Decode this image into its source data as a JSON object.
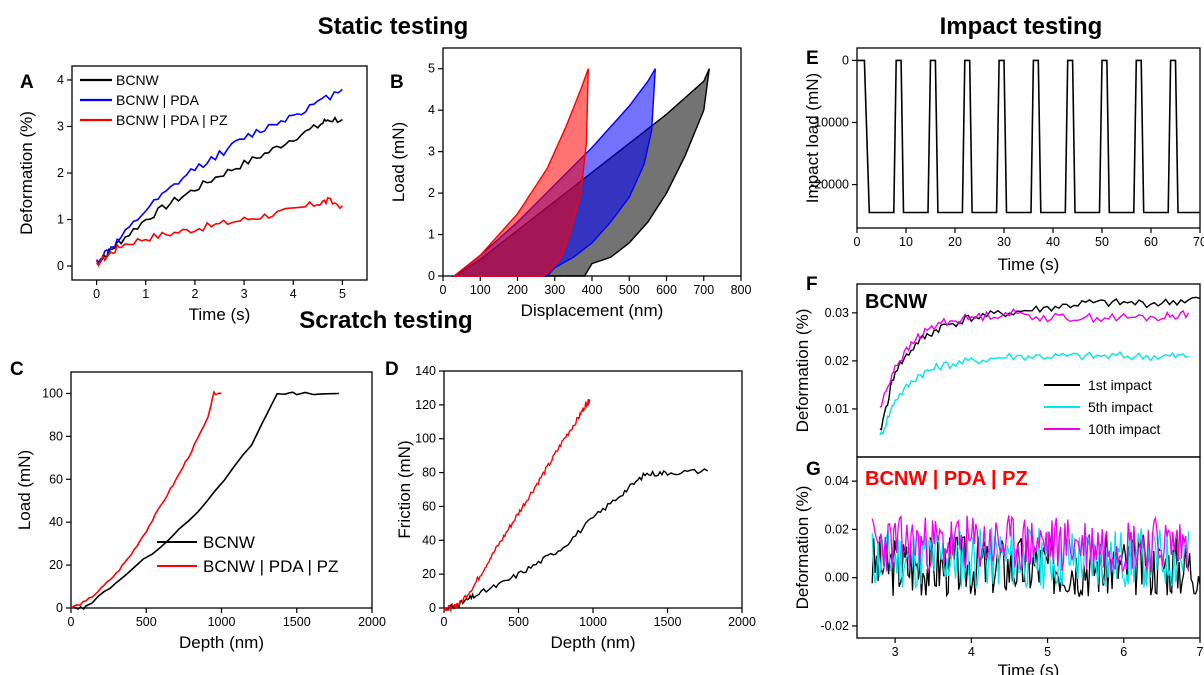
{
  "section_titles": {
    "static": "Static testing",
    "impact": "Impact testing",
    "scratch": "Scratch testing"
  },
  "colors": {
    "black": "#000000",
    "blue": "#0000ff",
    "red": "#ff0000",
    "cyan": "#00e5ee",
    "magenta": "#ee00ee"
  },
  "chart_data": [
    {
      "panel": "A",
      "type": "line",
      "xlabel": "Time (s)",
      "ylabel": "Deformation (%)",
      "xlim": [
        -0.5,
        5.5
      ],
      "ylim": [
        -0.3,
        4.3
      ],
      "xticks": [
        0,
        1,
        2,
        3,
        4,
        5
      ],
      "yticks": [
        0,
        1,
        2,
        3,
        4
      ],
      "legend": "top-left",
      "series": [
        {
          "name": "BCNW",
          "color": "#000000",
          "x": [
            0,
            0.25,
            0.5,
            1,
            1.5,
            2,
            2.5,
            3,
            3.5,
            4,
            4.5,
            4.7,
            5
          ],
          "y": [
            0.05,
            0.3,
            0.55,
            1.0,
            1.35,
            1.65,
            1.95,
            2.2,
            2.45,
            2.75,
            3.0,
            3.15,
            3.15
          ]
        },
        {
          "name": "BCNW | PDA",
          "color": "#0000ff",
          "x": [
            0,
            0.25,
            0.5,
            1,
            1.5,
            2,
            2.5,
            3,
            3.5,
            4,
            4.5,
            5
          ],
          "y": [
            0.1,
            0.35,
            0.6,
            1.2,
            1.65,
            2.1,
            2.4,
            2.75,
            3.0,
            3.25,
            3.5,
            3.8
          ]
        },
        {
          "name": "BCNW | PDA | PZ",
          "color": "#ff0000",
          "x": [
            0,
            0.25,
            0.5,
            1,
            1.5,
            2,
            2.5,
            3,
            3.5,
            4,
            4.5,
            4.7,
            5
          ],
          "y": [
            0.05,
            0.25,
            0.45,
            0.6,
            0.7,
            0.8,
            0.9,
            1.0,
            1.1,
            1.2,
            1.35,
            1.4,
            1.3
          ]
        }
      ]
    },
    {
      "panel": "B",
      "type": "area",
      "xlabel": "Displacement (nm)",
      "ylabel": "Load (mN)",
      "xlim": [
        0,
        800
      ],
      "ylim": [
        0,
        5.5
      ],
      "xticks": [
        0,
        100,
        200,
        300,
        400,
        500,
        600,
        700,
        800
      ],
      "yticks": [
        0,
        1,
        2,
        3,
        4,
        5
      ],
      "series": [
        {
          "name": "",
          "color": "#000000",
          "loading_x": [
            30,
            100,
            200,
            300,
            400,
            500,
            600,
            700,
            715
          ],
          "loading_y": [
            0,
            0.4,
            1.1,
            1.8,
            2.5,
            3.2,
            3.9,
            4.7,
            5.0
          ],
          "unloading_x": [
            715,
            700,
            650,
            600,
            550,
            500,
            450,
            400,
            380
          ],
          "unloading_y": [
            5.0,
            4.0,
            2.9,
            2.0,
            1.3,
            0.8,
            0.45,
            0.3,
            0
          ]
        },
        {
          "name": "",
          "color": "#0000ff",
          "loading_x": [
            30,
            100,
            200,
            300,
            400,
            500,
            550,
            570
          ],
          "loading_y": [
            0,
            0.5,
            1.3,
            2.2,
            3.1,
            4.1,
            4.7,
            5.0
          ],
          "unloading_x": [
            570,
            560,
            540,
            500,
            450,
            400,
            350,
            300,
            280
          ],
          "unloading_y": [
            5.0,
            3.5,
            2.7,
            1.9,
            1.3,
            0.8,
            0.45,
            0.2,
            0
          ]
        },
        {
          "name": "",
          "color": "#ff0000",
          "loading_x": [
            30,
            100,
            200,
            280,
            330,
            370,
            390
          ],
          "loading_y": [
            0,
            0.5,
            1.5,
            2.6,
            3.6,
            4.5,
            5.0
          ],
          "unloading_x": [
            390,
            385,
            370,
            340,
            320,
            290,
            270
          ],
          "unloading_y": [
            5.0,
            3.2,
            2.0,
            1.0,
            0.5,
            0.15,
            0
          ]
        }
      ]
    },
    {
      "panel": "C",
      "type": "line",
      "xlabel": "Depth (nm)",
      "ylabel": "Load (mN)",
      "xlim": [
        0,
        2000
      ],
      "ylim": [
        0,
        110
      ],
      "xticks": [
        0,
        500,
        1000,
        1500,
        2000
      ],
      "yticks": [
        0,
        20,
        40,
        60,
        80,
        100
      ],
      "legend": "bottom-right",
      "series": [
        {
          "name": "BCNW",
          "color": "#000000",
          "x": [
            0,
            80,
            100,
            300,
            600,
            900,
            1200,
            1370,
            1500,
            1780
          ],
          "y": [
            0,
            0,
            0.5,
            12,
            29,
            49,
            76,
            100,
            100,
            100
          ]
        },
        {
          "name": "BCNW | PDA | PZ",
          "color": "#ff0000",
          "x": [
            0,
            100,
            200,
            300,
            400,
            500,
            600,
            700,
            800,
            900,
            950,
            1000
          ],
          "y": [
            0,
            3,
            9,
            16,
            25,
            36,
            48,
            60,
            73,
            87,
            100,
            100
          ]
        }
      ]
    },
    {
      "panel": "D",
      "type": "line",
      "xlabel": "Depth (nm)",
      "ylabel": "Friction (mN)",
      "xlim": [
        0,
        2000
      ],
      "ylim": [
        0,
        140
      ],
      "xticks": [
        0,
        500,
        1000,
        1500,
        2000
      ],
      "yticks": [
        0,
        20,
        40,
        60,
        80,
        100,
        120,
        140
      ],
      "series": [
        {
          "name": "BCNW",
          "color": "#000000",
          "x": [
            0,
            80,
            100,
            200,
            400,
            600,
            800,
            1000,
            1200,
            1350,
            1500,
            1770
          ],
          "y": [
            0,
            1,
            2,
            7,
            15,
            25,
            36,
            53,
            68,
            79,
            80,
            81
          ]
        },
        {
          "name": "BCNW | PDA | PZ",
          "color": "#ff0000",
          "x": [
            0,
            50,
            100,
            200,
            300,
            400,
            500,
            600,
            700,
            800,
            900,
            950,
            980
          ],
          "y": [
            0,
            0,
            2,
            13,
            28,
            42,
            56,
            70,
            84,
            99,
            112,
            120,
            123
          ]
        }
      ]
    },
    {
      "panel": "E",
      "type": "line",
      "xlabel": "Time (s)",
      "ylabel": "Impact load (mN)",
      "xlim": [
        0,
        70
      ],
      "ylim": [
        -27000,
        2000
      ],
      "xticks": [
        0,
        10,
        20,
        30,
        40,
        50,
        60,
        70
      ],
      "yticks": [
        0,
        -10000,
        -20000
      ],
      "series": [
        {
          "name": "",
          "color": "#000000",
          "x": [
            0,
            1.5,
            2.5,
            7.5,
            8,
            9,
            9.5,
            14.5,
            15,
            16,
            16.5,
            21.5,
            22,
            23,
            23.5,
            28.5,
            29,
            30,
            30.5,
            35.5,
            36,
            37,
            37.5,
            42.5,
            43,
            44,
            44.5,
            49.5,
            50,
            51,
            51.5,
            56.5,
            57,
            58,
            58.5,
            63.5,
            64,
            65,
            65.5,
            70
          ],
          "y": [
            0,
            0,
            -24500,
            -24500,
            0,
            0,
            -24500,
            -24500,
            0,
            0,
            -24500,
            -24500,
            0,
            0,
            -24500,
            -24500,
            0,
            0,
            -24500,
            -24500,
            0,
            0,
            -24500,
            -24500,
            0,
            0,
            -24500,
            -24500,
            0,
            0,
            -24500,
            -24500,
            0,
            0,
            -24500,
            -24500,
            0,
            0,
            -24500,
            -24500
          ]
        }
      ]
    },
    {
      "panel": "F",
      "type": "line",
      "title": "BCNW",
      "xlabel": "",
      "ylabel": "Deformation (%)",
      "xlim": [
        2.5,
        7
      ],
      "ylim": [
        0,
        0.036
      ],
      "yticks": [
        0.01,
        0.02,
        0.03
      ],
      "legend": "bottom-right",
      "series": [
        {
          "name": "1st impact",
          "color": "#000000",
          "x": [
            2.8,
            3.0,
            3.3,
            3.6,
            4.0,
            4.5,
            5.0,
            5.5,
            6.0,
            6.5,
            7.0
          ],
          "y": [
            0.005,
            0.018,
            0.024,
            0.027,
            0.029,
            0.03,
            0.031,
            0.032,
            0.032,
            0.032,
            0.033
          ]
        },
        {
          "name": "5th impact",
          "color": "#00e5ee",
          "x": [
            2.8,
            3.0,
            3.3,
            3.6,
            4.0,
            4.5,
            5.0,
            5.5,
            6.0,
            6.5,
            6.85
          ],
          "y": [
            0.004,
            0.012,
            0.017,
            0.019,
            0.02,
            0.021,
            0.021,
            0.021,
            0.021,
            0.021,
            0.021
          ]
        },
        {
          "name": "10th impact",
          "color": "#ee00ee",
          "x": [
            2.8,
            3.0,
            3.3,
            3.6,
            4.0,
            4.5,
            5.0,
            5.5,
            6.0,
            6.5,
            6.85
          ],
          "y": [
            0.01,
            0.019,
            0.025,
            0.028,
            0.029,
            0.03,
            0.029,
            0.029,
            0.029,
            0.029,
            0.03
          ]
        }
      ]
    },
    {
      "panel": "G",
      "type": "line",
      "title": "BCNW | PDA | PZ",
      "xlabel": "Time (s)",
      "ylabel": "Deformation (%)",
      "xlim": [
        2.5,
        7
      ],
      "ylim": [
        -0.025,
        0.05
      ],
      "xticks": [
        3,
        4,
        5,
        6,
        7
      ],
      "yticks": [
        -0.02,
        0.0,
        0.02,
        0.04
      ],
      "series": [
        {
          "name": "1st impact",
          "color": "#000000",
          "x_range": [
            2.7,
            7.0
          ],
          "mean": 0.005,
          "amplitude": 0.013,
          "seed": 3
        },
        {
          "name": "5th impact",
          "color": "#00e5ee",
          "x_range": [
            2.7,
            6.85
          ],
          "mean": 0.008,
          "amplitude": 0.013,
          "seed": 11
        },
        {
          "name": "10th impact",
          "color": "#ee00ee",
          "x_range": [
            2.7,
            6.85
          ],
          "mean": 0.014,
          "amplitude": 0.012,
          "seed": 23
        }
      ]
    }
  ]
}
